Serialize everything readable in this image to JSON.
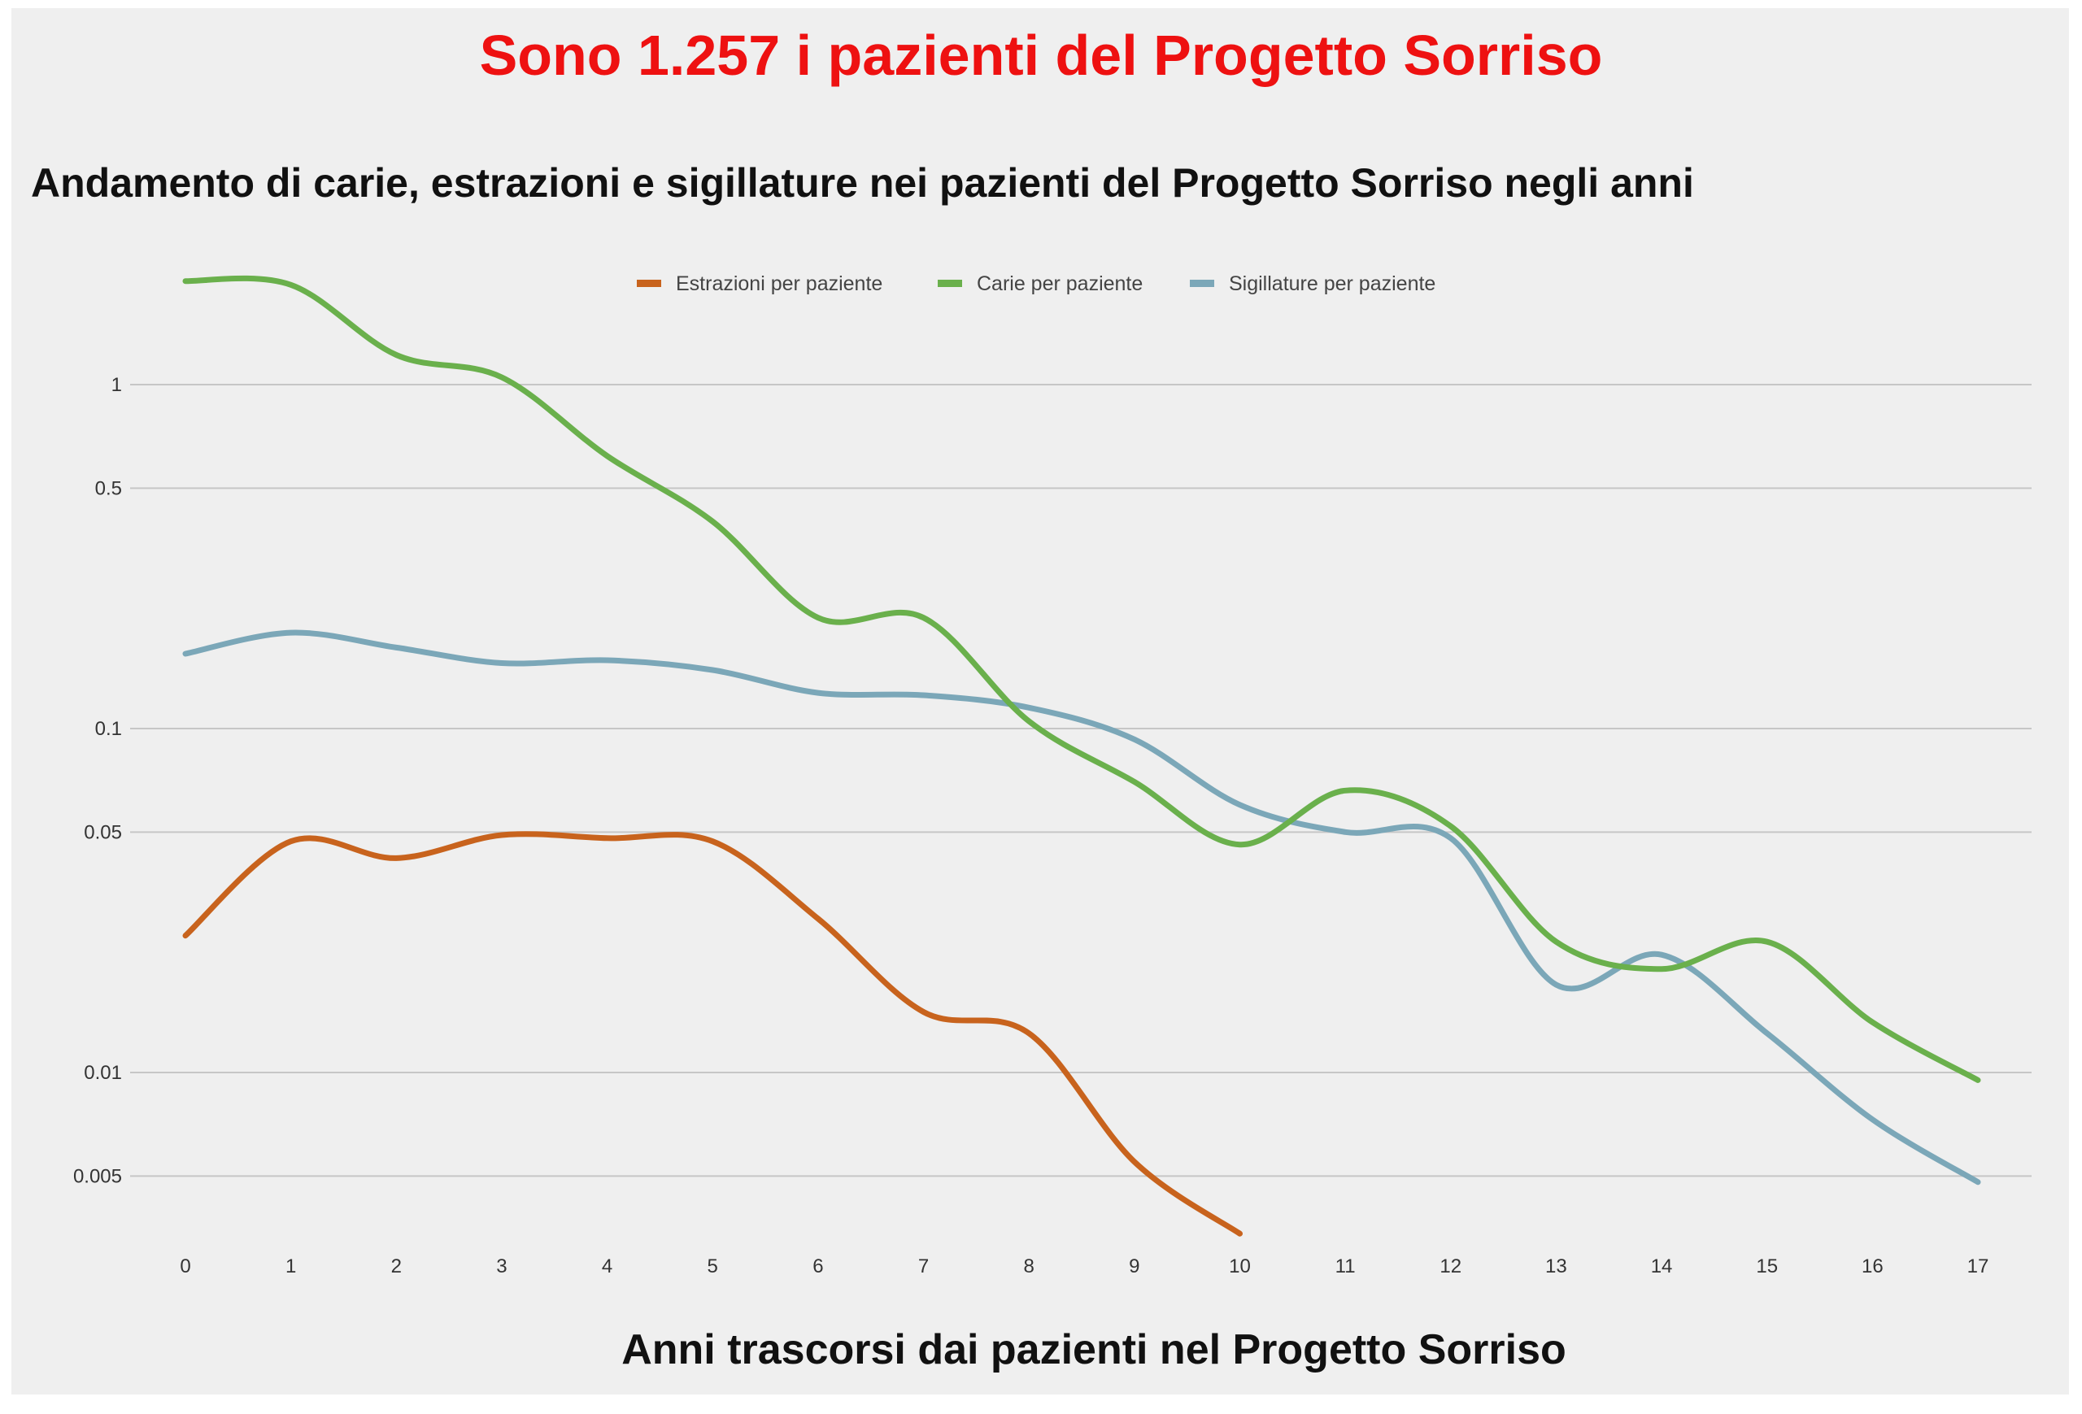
{
  "header": {
    "headline": "Sono 1.257 i pazienti del Progetto Sorriso",
    "subtitle": "Andamento di carie, estrazioni e sigillature nei pazienti del Progetto Sorriso negli anni"
  },
  "chart_data": {
    "type": "line",
    "title": "Andamento di carie, estrazioni e sigillature nei pazienti del Progetto Sorriso negli anni",
    "xlabel": "Anni trascorsi dai pazienti nel Progetto Sorriso",
    "ylabel": "",
    "yscale": "log",
    "grid": true,
    "legend_position": "top-center",
    "x": [
      0,
      1,
      2,
      3,
      4,
      5,
      6,
      7,
      8,
      9,
      10,
      11,
      12,
      13,
      14,
      15,
      16,
      17
    ],
    "x_ticks": [
      "0",
      "1",
      "2",
      "3",
      "4",
      "5",
      "6",
      "7",
      "8",
      "9",
      "10",
      "11",
      "12",
      "13",
      "14",
      "15",
      "16",
      "17"
    ],
    "y_ticks": [
      {
        "value": 1,
        "label": "1"
      },
      {
        "value": 0.5,
        "label": "0.5"
      },
      {
        "value": 0.1,
        "label": "0.1"
      },
      {
        "value": 0.05,
        "label": "0.05"
      },
      {
        "value": 0.01,
        "label": "0.01"
      },
      {
        "value": 0.005,
        "label": "0.005"
      }
    ],
    "ylim": [
      0.0035,
      2.2
    ],
    "xlim": [
      0,
      17
    ],
    "series": [
      {
        "name": "Estrazioni per paziente",
        "color": "#c8631d",
        "x": [
          0,
          1,
          2,
          3,
          4,
          5,
          6,
          7,
          8,
          9,
          10
        ],
        "values": [
          0.025,
          0.047,
          0.042,
          0.049,
          0.048,
          0.047,
          0.028,
          0.015,
          0.013,
          0.0055,
          0.0034
        ]
      },
      {
        "name": "Carie per paziente",
        "color": "#6ab04c",
        "x": [
          0,
          1,
          2,
          3,
          4,
          5,
          6,
          7,
          8,
          9,
          10,
          11,
          12,
          13,
          14,
          15,
          16,
          17
        ],
        "values": [
          2.0,
          1.95,
          1.22,
          1.05,
          0.62,
          0.4,
          0.21,
          0.21,
          0.105,
          0.07,
          0.046,
          0.066,
          0.052,
          0.024,
          0.02,
          0.024,
          0.014,
          0.0095
        ]
      },
      {
        "name": "Sigillature per paziente",
        "color": "#7ba7b8",
        "x": [
          0,
          1,
          2,
          3,
          4,
          5,
          6,
          7,
          8,
          9,
          10,
          11,
          12,
          13,
          14,
          15,
          16,
          17
        ],
        "values": [
          0.165,
          0.19,
          0.172,
          0.155,
          0.158,
          0.148,
          0.127,
          0.125,
          0.115,
          0.093,
          0.06,
          0.05,
          0.048,
          0.018,
          0.022,
          0.013,
          0.0073,
          0.0048
        ]
      }
    ]
  }
}
